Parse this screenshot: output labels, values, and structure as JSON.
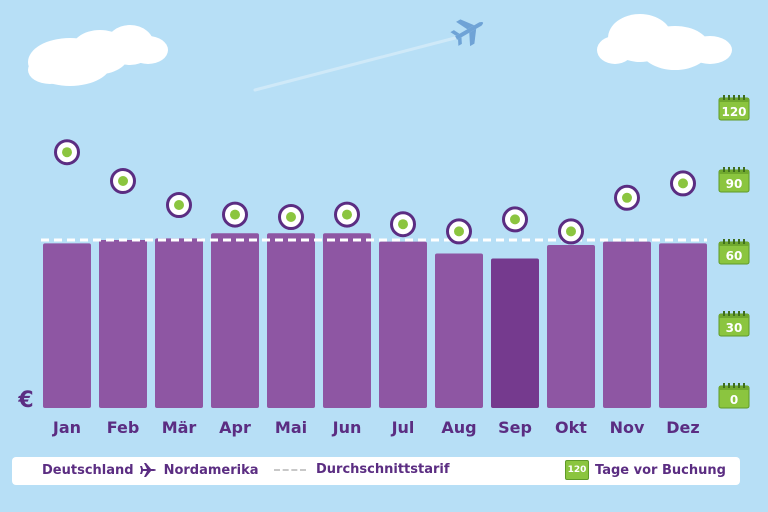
{
  "chart_data": {
    "type": "bar",
    "categories": [
      "Jan",
      "Feb",
      "Mär",
      "Apr",
      "Mai",
      "Jun",
      "Jul",
      "Aug",
      "Sep",
      "Okt",
      "Nov",
      "Dez"
    ],
    "series": [
      {
        "name": "Deutschland → Nordamerika",
        "values": [
          0.98,
          1.0,
          1.01,
          1.04,
          1.04,
          1.04,
          0.99,
          0.92,
          0.89,
          0.97,
          0.99,
          0.98
        ]
      },
      {
        "name": "Tage vor Buchung",
        "values": [
          102,
          90,
          80,
          76,
          75,
          76,
          72,
          69,
          74,
          69,
          83,
          89
        ]
      }
    ],
    "average_line": 1.0,
    "highlight_category": "Sep",
    "secondary_axis_ticks": [
      "0",
      "30",
      "60",
      "90",
      "120"
    ],
    "secondary_axis_range": [
      0,
      120
    ],
    "currency_symbol": "€",
    "colors": {
      "bar": "#8e56a3",
      "bar_highlight": "#753a8e",
      "marker_ring": "#5b2d82",
      "marker_dot": "#8bc53f",
      "average_line": "#ffffff",
      "calendar": "#8bc53f",
      "text": "#5b2d82"
    }
  },
  "legend": {
    "origin": "Deutschland",
    "destination": "Nordamerika",
    "plane_icon": "plane-icon",
    "average_label": "Durchschnittstarif",
    "calendar_value": "120",
    "days_label": "Tage vor Buchung"
  }
}
